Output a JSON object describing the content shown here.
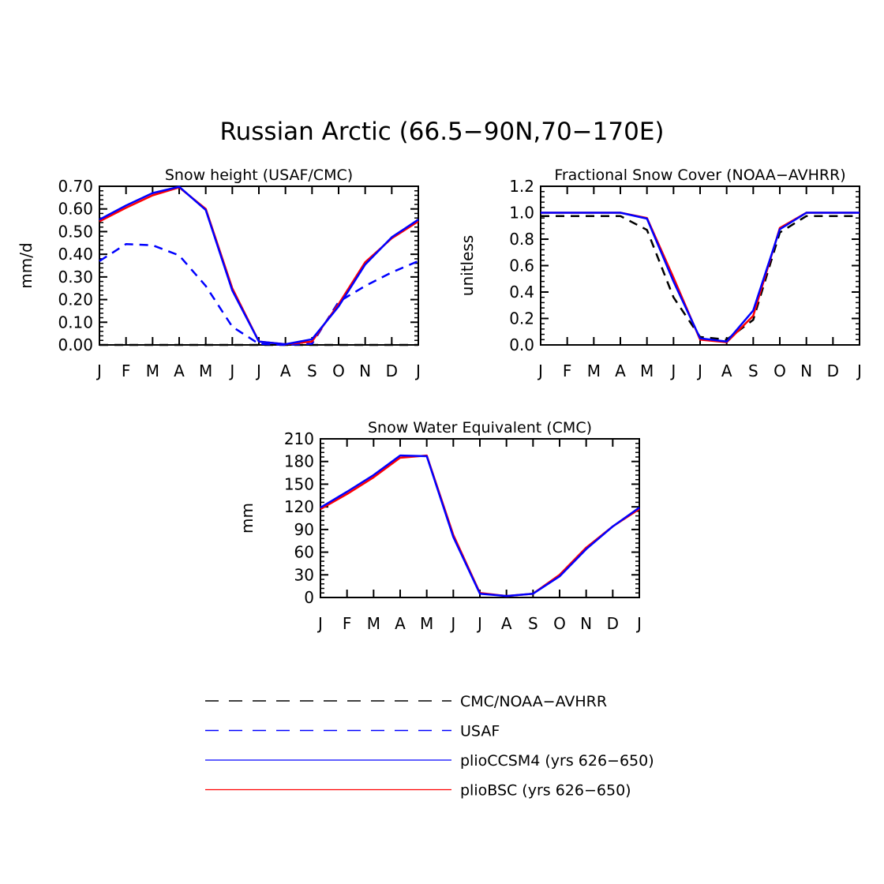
{
  "figure": {
    "title": "Russian Arctic (66.5−90N,70−170E)"
  },
  "months": [
    "J",
    "F",
    "M",
    "A",
    "M",
    "J",
    "J",
    "A",
    "S",
    "O",
    "N",
    "D",
    "J"
  ],
  "legend": {
    "items": [
      {
        "label": "CMC/NOAA−AVHRR",
        "color": "#000000",
        "dash": true
      },
      {
        "label": "USAF",
        "color": "#0000ff",
        "dash": true
      },
      {
        "label": "plioCCSM4 (yrs 626−650)",
        "color": "#0000ff",
        "dash": false
      },
      {
        "label": "plioBSC (yrs 626−650)",
        "color": "#ff0000",
        "dash": false
      }
    ]
  },
  "chart_data": [
    {
      "type": "line",
      "title": "Snow height (USAF/CMC)",
      "xlabel": "",
      "ylabel": "mm/d",
      "categories": [
        "J",
        "F",
        "M",
        "A",
        "M",
        "J",
        "J",
        "A",
        "S",
        "O",
        "N",
        "D",
        "J"
      ],
      "ylim": [
        0,
        0.7
      ],
      "yticks": [
        "0.00",
        "0.10",
        "0.20",
        "0.30",
        "0.40",
        "0.50",
        "0.60",
        "0.70"
      ],
      "series": [
        {
          "name": "CMC/NOAA−AVHRR",
          "color": "#000000",
          "dash": true,
          "values": [
            0,
            0,
            0,
            0,
            0,
            0,
            0,
            0,
            0,
            0,
            0,
            0,
            0
          ]
        },
        {
          "name": "USAF",
          "color": "#0000ff",
          "dash": true,
          "values": [
            0.37,
            0.445,
            0.44,
            0.395,
            0.26,
            0.08,
            0.005,
            0.0,
            0.005,
            0.19,
            0.26,
            0.32,
            0.37
          ]
        },
        {
          "name": "plioBSC (yrs 626−650)",
          "color": "#ff0000",
          "dash": false,
          "values": [
            0.545,
            0.605,
            0.66,
            0.695,
            0.6,
            0.25,
            0.015,
            0.003,
            0.015,
            0.18,
            0.365,
            0.47,
            0.545
          ]
        },
        {
          "name": "plioCCSM4 (yrs 626−650)",
          "color": "#0000ff",
          "dash": false,
          "values": [
            0.553,
            0.615,
            0.67,
            0.698,
            0.595,
            0.24,
            0.015,
            0.003,
            0.025,
            0.17,
            0.355,
            0.475,
            0.553
          ]
        }
      ]
    },
    {
      "type": "line",
      "title": "Fractional Snow Cover (NOAA−AVHRR)",
      "xlabel": "",
      "ylabel": "unitless",
      "categories": [
        "J",
        "F",
        "M",
        "A",
        "M",
        "J",
        "J",
        "A",
        "S",
        "O",
        "N",
        "D",
        "J"
      ],
      "ylim": [
        0,
        1.2
      ],
      "yticks": [
        "0.0",
        "0.2",
        "0.4",
        "0.6",
        "0.8",
        "1.0",
        "1.2"
      ],
      "series": [
        {
          "name": "CMC/NOAA−AVHRR",
          "color": "#000000",
          "dash": true,
          "values": [
            0.975,
            0.975,
            0.975,
            0.975,
            0.87,
            0.36,
            0.06,
            0.04,
            0.19,
            0.85,
            0.975,
            0.975,
            0.975
          ]
        },
        {
          "name": "plioBSC (yrs 626−650)",
          "color": "#ff0000",
          "dash": false,
          "values": [
            1.0,
            1.0,
            1.0,
            1.0,
            0.96,
            0.51,
            0.04,
            0.02,
            0.22,
            0.885,
            1.0,
            1.0,
            1.0
          ]
        },
        {
          "name": "plioCCSM4 (yrs 626−650)",
          "color": "#0000ff",
          "dash": false,
          "values": [
            1.0,
            1.0,
            1.0,
            1.0,
            0.955,
            0.48,
            0.05,
            0.025,
            0.26,
            0.875,
            1.0,
            1.0,
            1.0
          ]
        }
      ]
    },
    {
      "type": "line",
      "title": "Snow Water Equivalent (CMC)",
      "xlabel": "",
      "ylabel": "mm",
      "categories": [
        "J",
        "F",
        "M",
        "A",
        "M",
        "J",
        "J",
        "A",
        "S",
        "O",
        "N",
        "D",
        "J"
      ],
      "ylim": [
        0,
        210
      ],
      "yticks": [
        "0",
        "30",
        "60",
        "90",
        "120",
        "150",
        "180",
        "210"
      ],
      "series": [
        {
          "name": "plioBSC (yrs 626−650)",
          "color": "#ff0000",
          "dash": false,
          "values": [
            117,
            137,
            159,
            185,
            188,
            83,
            6,
            2,
            5,
            30,
            66,
            94,
            117
          ]
        },
        {
          "name": "plioCCSM4 (yrs 626−650)",
          "color": "#0000ff",
          "dash": false,
          "values": [
            119,
            140,
            162,
            188,
            187,
            80,
            5,
            2,
            5,
            28,
            64,
            94,
            119
          ]
        }
      ]
    }
  ]
}
